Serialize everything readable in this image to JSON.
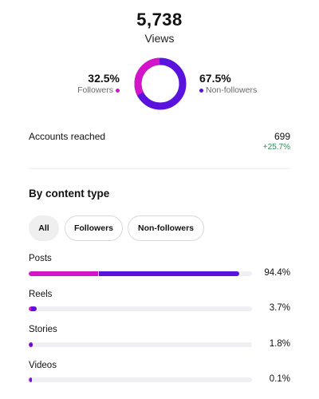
{
  "summary": {
    "views_value": "5,738",
    "views_label": "Views",
    "followers_pct": "32.5%",
    "followers_label": "Followers",
    "followers_fraction": 0.325,
    "nonfollowers_pct": "67.5%",
    "nonfollowers_label": "Non-followers"
  },
  "colors": {
    "followers": "#d315c9",
    "nonfollowers": "#5a13dd",
    "positive_delta": "#2e8b57"
  },
  "reach": {
    "label": "Accounts reached",
    "value": "699",
    "delta": "+25.7%"
  },
  "content_type": {
    "title": "By content type",
    "filters": [
      {
        "label": "All",
        "active": true
      },
      {
        "label": "Followers",
        "active": false
      },
      {
        "label": "Non-followers",
        "active": false
      }
    ],
    "rows": [
      {
        "label": "Posts",
        "pct": "94.4%",
        "fill": 0.944,
        "followers_share": 0.33
      },
      {
        "label": "Reels",
        "pct": "3.7%",
        "fill": 0.037,
        "followers_share": 0.25
      },
      {
        "label": "Stories",
        "pct": "1.8%",
        "fill": 0.018,
        "followers_share": 0.25
      },
      {
        "label": "Videos",
        "pct": "0.1%",
        "fill": 0.001,
        "followers_share": 0.5
      }
    ]
  }
}
